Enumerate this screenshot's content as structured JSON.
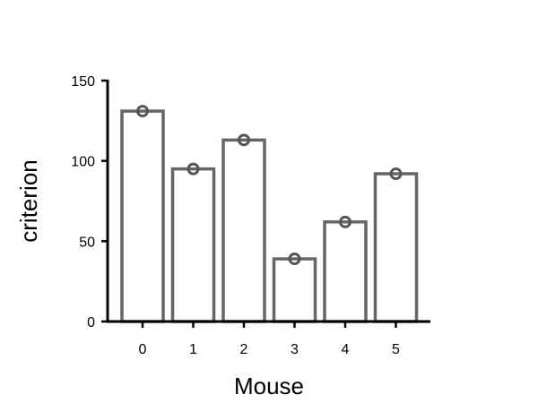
{
  "chart_data": {
    "type": "bar",
    "title": "",
    "xlabel": "Mouse",
    "ylabel": "criterion",
    "categories": [
      "0",
      "1",
      "2",
      "3",
      "4",
      "5"
    ],
    "values": [
      131,
      95,
      113,
      39,
      62,
      92
    ],
    "points": [
      131,
      95,
      113,
      39,
      62,
      92
    ],
    "ylim": [
      0,
      150
    ],
    "yticks": [
      "0",
      "50",
      "100",
      "150"
    ],
    "grid": false,
    "legend": "none",
    "colors": {
      "bar_fill": "#ffffff",
      "bar_edge": "#666666",
      "point_edge": "#555555",
      "axis": "#000000"
    }
  }
}
